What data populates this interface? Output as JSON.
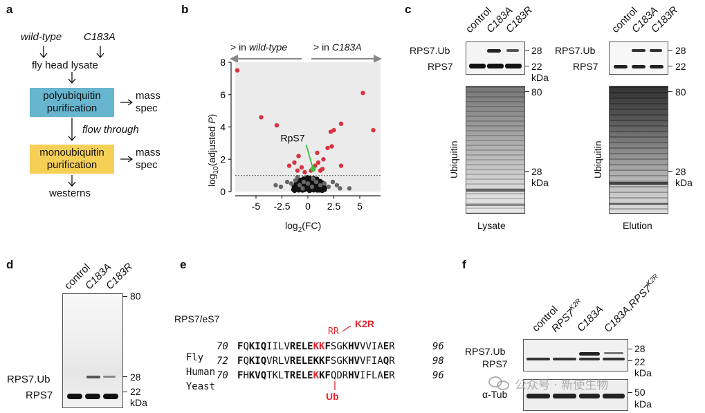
{
  "panels": {
    "a": "a",
    "b": "b",
    "c": "c",
    "d": "d",
    "e": "e",
    "f": "f"
  },
  "a": {
    "wildtype": "wild-type",
    "c183a": "C183A",
    "lysate": "fly head lysate",
    "poly": "polyubiquitin purification",
    "mass1": "mass spec",
    "flow": "flow through",
    "mono": "monoubiquitin purification",
    "mass2": "mass spec",
    "westerns": "westerns",
    "colors": {
      "poly": "#67b5cf",
      "mono": "#f5cf56"
    }
  },
  "b": {
    "left_arrow_prefix": "> in ",
    "left_arrow_italic": "wild-type",
    "right_arrow_prefix": "> in ",
    "right_arrow_italic": "C183A",
    "ylabel_pre": "log",
    "ylabel_sub": "10",
    "ylabel_post": "(adjusted ",
    "ylabel_P": "P",
    "ylabel_end": ")",
    "xlabel_pre": "log",
    "xlabel_sub": "2",
    "xlabel_post": "(FC)",
    "rps7": "RpS7",
    "colors": {
      "sig": "#d9333f",
      "nonsig": "#333333",
      "highlight": "#3cbf3c",
      "bg": "#ebebeb"
    }
  },
  "chart_data": {
    "type": "scatter",
    "xlabel": "log2(FC)",
    "ylabel": "log10(adjusted P)",
    "xticks": [
      "-5",
      "-2.5",
      "0",
      "2.5",
      "5"
    ],
    "yticks": [
      "0",
      "2",
      "4",
      "6",
      "8"
    ],
    "xlim": [
      -7,
      7
    ],
    "ylim": [
      0,
      8
    ],
    "threshold": 1.0,
    "highlight": {
      "name": "RpS7",
      "x": 0.5,
      "y": 1.4
    },
    "significant_points": [
      {
        "x": -6.8,
        "y": 7.5
      },
      {
        "x": -4.5,
        "y": 4.6
      },
      {
        "x": -3.0,
        "y": 4.1
      },
      {
        "x": 5.3,
        "y": 6.1
      },
      {
        "x": 6.3,
        "y": 3.8
      },
      {
        "x": 2.2,
        "y": 3.7
      },
      {
        "x": 3.2,
        "y": 4.2
      },
      {
        "x": 2.5,
        "y": 3.8
      },
      {
        "x": 1.9,
        "y": 2.7
      },
      {
        "x": 2.3,
        "y": 2.8
      },
      {
        "x": 1.5,
        "y": 2.0
      },
      {
        "x": 3.2,
        "y": 1.6
      },
      {
        "x": -1.8,
        "y": 1.6
      },
      {
        "x": -1.3,
        "y": 1.8
      },
      {
        "x": -0.9,
        "y": 2.2
      },
      {
        "x": -0.6,
        "y": 1.5
      },
      {
        "x": 0.7,
        "y": 1.6
      },
      {
        "x": 1.0,
        "y": 1.8
      },
      {
        "x": 1.2,
        "y": 1.3
      },
      {
        "x": -0.3,
        "y": 1.2
      },
      {
        "x": 0.3,
        "y": 1.3
      },
      {
        "x": 1.4,
        "y": 1.4
      },
      {
        "x": -1.0,
        "y": 1.3
      },
      {
        "x": 0.9,
        "y": 2.4
      }
    ],
    "nonsignificant_points": [
      {
        "x": -3.1,
        "y": 0.4
      },
      {
        "x": -2.6,
        "y": 0.3
      },
      {
        "x": -2.0,
        "y": 0.6
      },
      {
        "x": -1.6,
        "y": 0.5
      },
      {
        "x": -1.2,
        "y": 0.7
      },
      {
        "x": -0.8,
        "y": 0.4
      },
      {
        "x": -0.4,
        "y": 0.6
      },
      {
        "x": 0.0,
        "y": 0.5
      },
      {
        "x": 0.4,
        "y": 0.3
      },
      {
        "x": 0.8,
        "y": 0.6
      },
      {
        "x": 1.2,
        "y": 0.4
      },
      {
        "x": 1.6,
        "y": 0.5
      },
      {
        "x": 2.0,
        "y": 0.3
      },
      {
        "x": 2.4,
        "y": 0.6
      },
      {
        "x": 2.8,
        "y": 0.4
      },
      {
        "x": 3.1,
        "y": 0.2
      },
      {
        "x": 4.0,
        "y": 0.2
      },
      {
        "x": -0.5,
        "y": 0.2
      },
      {
        "x": 0.5,
        "y": 0.8
      },
      {
        "x": -1.0,
        "y": 0.9
      }
    ]
  },
  "c": {
    "lanes": [
      "control",
      "C183A",
      "C183R"
    ],
    "rps7ub": "RPS7.Ub",
    "rps7": "RPS7",
    "mw28": "28",
    "mw22": "22",
    "kda": "kDa",
    "mw80": "80",
    "ubiquitin": "Ubiquitin",
    "lysate": "Lysate",
    "elution": "Elution"
  },
  "d": {
    "lanes": [
      "control",
      "C183A",
      "C183R"
    ],
    "mw80": "80",
    "mw28": "28",
    "mw22": "22",
    "kda": "kDa",
    "rps7ub": "RPS7.Ub",
    "rps7": "RPS7"
  },
  "e": {
    "title": "RPS7/eS7",
    "rr": "RR",
    "k2r": "K2R",
    "ub": "Ub",
    "rows": [
      {
        "species": "Fly",
        "start": "70",
        "end": "96"
      },
      {
        "species": "Human",
        "start": "72",
        "end": "98"
      },
      {
        "species": "Yeast",
        "start": "70",
        "end": "96"
      }
    ]
  },
  "f": {
    "lane1": "control",
    "lane2": "RPS7",
    "lane2sup": "K2R",
    "lane3": "C183A",
    "lane4": "C183A,RPS7",
    "lane4sup": "K2R",
    "rps7ub": "RPS7.Ub",
    "rps7": "RPS7",
    "atub": "α-Tub",
    "mw28": "28",
    "mw22": "22",
    "kda1": "kDa",
    "mw50": "50",
    "kda2": "kDa",
    "watermark": "公众号 · 新使生物"
  }
}
